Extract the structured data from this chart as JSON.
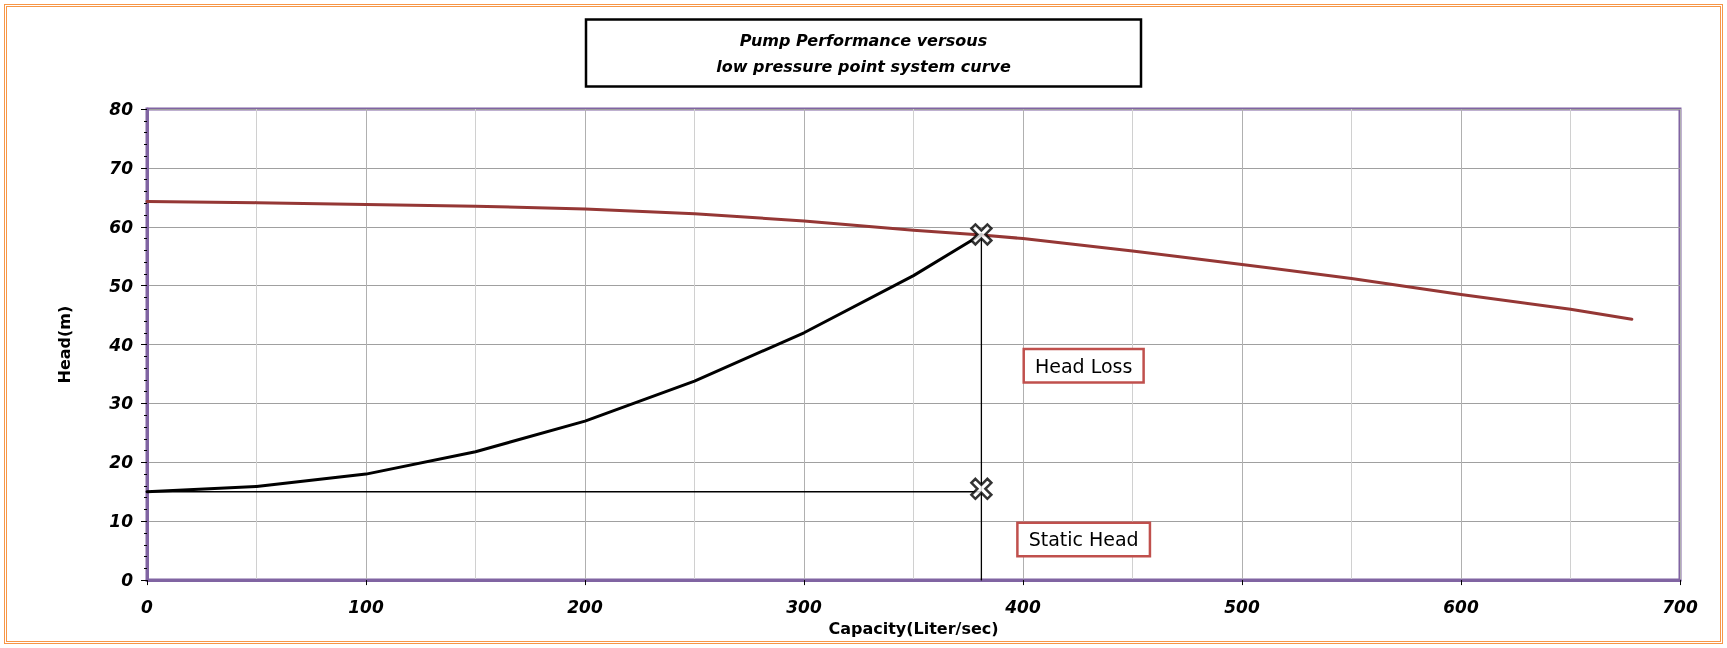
{
  "chart_data": {
    "type": "line",
    "title": "Pump Performance versous\nlow pressure point system curve",
    "xlabel": "Capacity(Liter/sec)",
    "ylabel": "Head(m)",
    "xlim": [
      0,
      700
    ],
    "xticks": [
      0,
      100,
      200,
      300,
      400,
      500,
      600,
      700
    ],
    "ylim": [
      0,
      80
    ],
    "yticks": [
      0,
      10,
      20,
      30,
      40,
      50,
      60,
      70,
      80
    ],
    "grid": true,
    "marker": "none",
    "line_style": "solid",
    "series": [
      {
        "color": "#953735",
        "x": [
          0,
          50,
          100,
          150,
          200,
          250,
          300,
          350,
          381,
          400,
          450,
          500,
          550,
          600,
          650,
          678
        ],
        "values": [
          64.3,
          64.1,
          63.8,
          63.5,
          63.0,
          62.2,
          61.0,
          59.4,
          58.6,
          58.0,
          55.9,
          53.6,
          51.2,
          48.5,
          46.0,
          44.3
        ]
      },
      {
        "color": "#000000",
        "x": [
          0,
          50,
          100,
          150,
          200,
          250,
          300,
          350,
          381
        ],
        "values": [
          15,
          15.9,
          18,
          21.8,
          27,
          33.8,
          42,
          51.7,
          58.7
        ]
      },
      {
        "color": "#000000",
        "x": [
          0,
          381
        ],
        "values": [
          15,
          15
        ]
      },
      {
        "color": "#000000",
        "x": [
          381,
          381
        ],
        "values": [
          0,
          58.7
        ]
      },
      {
        "type": "scatter",
        "marker": "cross",
        "color": "#000000",
        "x": [
          381,
          381
        ],
        "values": [
          58.7,
          15.5
        ]
      }
    ],
    "annotations": [
      "Head Loss",
      "Static Head"
    ]
  }
}
